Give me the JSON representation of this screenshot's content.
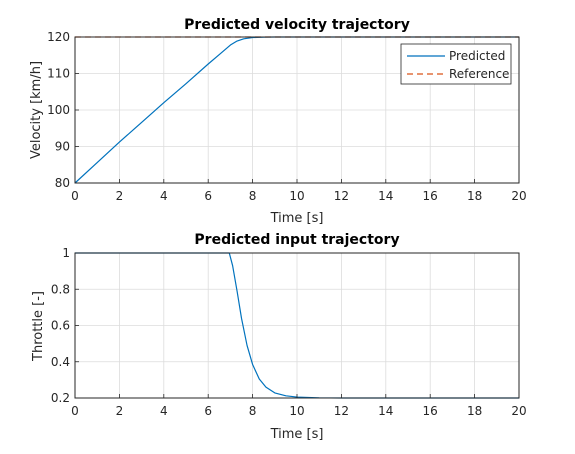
{
  "chart_data": [
    {
      "type": "line",
      "title": "Predicted velocity trajectory",
      "xlabel": "Time [s]",
      "ylabel": "Velocity [km/h]",
      "xlim": [
        0,
        20
      ],
      "ylim": [
        80,
        120
      ],
      "xticks": [
        "0",
        "2",
        "4",
        "6",
        "8",
        "10",
        "12",
        "14",
        "16",
        "18",
        "20"
      ],
      "yticks": [
        "80",
        "90",
        "100",
        "110",
        "120"
      ],
      "grid": true,
      "legend": "top-right",
      "series": [
        {
          "name": "Predicted",
          "color": "#0072BD",
          "style": "solid",
          "x": [
            0,
            1,
            2,
            3,
            4,
            5,
            6,
            6.5,
            7,
            7.3,
            7.6,
            8,
            8.5,
            9,
            9.5,
            10,
            12,
            14,
            16,
            18,
            20
          ],
          "y": [
            80,
            85.6,
            91.2,
            96.6,
            102,
            107.2,
            112.6,
            115.2,
            117.8,
            118.9,
            119.5,
            119.85,
            119.97,
            120,
            120,
            120,
            120,
            120,
            120,
            120,
            120
          ]
        },
        {
          "name": "Reference",
          "color": "#D95319",
          "style": "dashed",
          "x": [
            0,
            20
          ],
          "y": [
            120,
            120
          ]
        }
      ]
    },
    {
      "type": "line",
      "title": "Predicted input trajectory",
      "xlabel": "Time [s]",
      "ylabel": "Throttle [-]",
      "xlim": [
        0,
        20
      ],
      "ylim": [
        0.2,
        1
      ],
      "xticks": [
        "0",
        "2",
        "4",
        "6",
        "8",
        "10",
        "12",
        "14",
        "16",
        "18",
        "20"
      ],
      "yticks": [
        "0.2",
        "0.4",
        "0.6",
        "0.8",
        "1"
      ],
      "grid": true,
      "series": [
        {
          "color": "#0072BD",
          "style": "solid",
          "x": [
            0,
            6.95,
            7.1,
            7.3,
            7.5,
            7.75,
            8,
            8.3,
            8.6,
            9,
            9.5,
            10,
            11,
            12,
            14,
            16,
            18,
            20
          ],
          "y": [
            1,
            1,
            0.93,
            0.79,
            0.64,
            0.49,
            0.385,
            0.305,
            0.26,
            0.228,
            0.212,
            0.205,
            0.201,
            0.2,
            0.2,
            0.2,
            0.2,
            0.2
          ]
        }
      ]
    }
  ]
}
